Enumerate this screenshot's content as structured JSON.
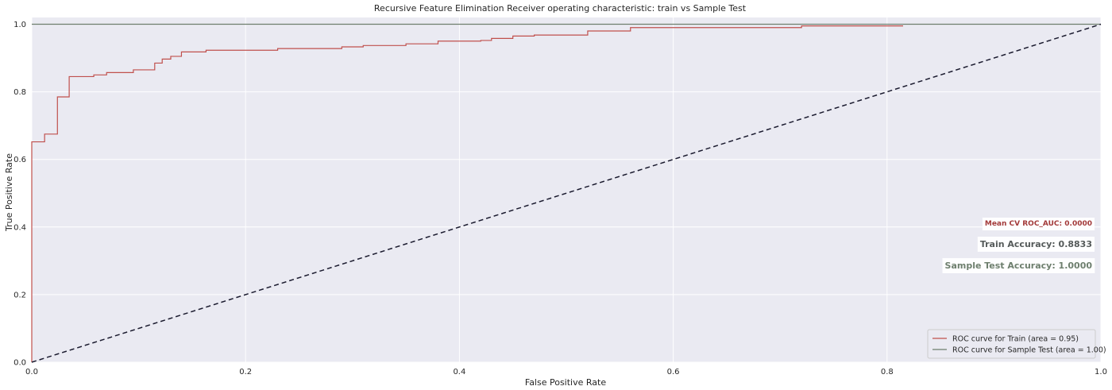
{
  "chart_data": {
    "type": "line",
    "title": "Recursive Feature Elimination Receiver operating characteristic: train vs Sample Test",
    "xlabel": "False Positive Rate",
    "ylabel": "True Positive Rate",
    "xlim": [
      0.0,
      1.0
    ],
    "ylim": [
      0.0,
      1.02
    ],
    "x_ticks": [
      0.0,
      0.2,
      0.4,
      0.6,
      0.8,
      1.0
    ],
    "y_ticks": [
      0.0,
      0.2,
      0.4,
      0.6,
      0.8,
      1.0
    ],
    "x_tick_labels": [
      "0.0",
      "0.2",
      "0.4",
      "0.6",
      "0.8",
      "1.0"
    ],
    "y_tick_labels": [
      "0.0",
      "0.2",
      "0.4",
      "0.6",
      "0.8",
      "1.0"
    ],
    "grid": true,
    "legend_position": "bottom-right",
    "series": [
      {
        "name": "ROC curve for Train (area = 0.95)",
        "color": "#c0504d",
        "step": true,
        "x": [
          0.0,
          0.0,
          0.012,
          0.012,
          0.024,
          0.024,
          0.035,
          0.035,
          0.058,
          0.058,
          0.07,
          0.07,
          0.095,
          0.095,
          0.115,
          0.115,
          0.122,
          0.122,
          0.13,
          0.13,
          0.14,
          0.14,
          0.163,
          0.163,
          0.23,
          0.23,
          0.29,
          0.29,
          0.31,
          0.31,
          0.35,
          0.35,
          0.38,
          0.38,
          0.42,
          0.42,
          0.43,
          0.43,
          0.45,
          0.45,
          0.47,
          0.47,
          0.52,
          0.52,
          0.56,
          0.56,
          0.72,
          0.72,
          0.815
        ],
        "y": [
          0.0,
          0.652,
          0.652,
          0.675,
          0.675,
          0.785,
          0.785,
          0.845,
          0.845,
          0.85,
          0.85,
          0.857,
          0.857,
          0.865,
          0.865,
          0.885,
          0.885,
          0.897,
          0.897,
          0.905,
          0.905,
          0.918,
          0.918,
          0.923,
          0.923,
          0.928,
          0.928,
          0.933,
          0.933,
          0.937,
          0.937,
          0.942,
          0.942,
          0.95,
          0.95,
          0.952,
          0.952,
          0.958,
          0.958,
          0.965,
          0.965,
          0.968,
          0.968,
          0.98,
          0.98,
          0.99,
          0.99,
          0.995,
          0.995
        ]
      },
      {
        "name": "ROC curve for Sample Test (area = 1.00)",
        "color": "#6e7f6e",
        "step": false,
        "x": [
          0.0,
          1.0
        ],
        "y": [
          1.0,
          1.0
        ]
      },
      {
        "name": "",
        "color": "#1a1a2e",
        "dashed": true,
        "x": [
          0.0,
          1.0
        ],
        "y": [
          0.0,
          1.0
        ]
      }
    ],
    "annotations": [
      {
        "text": "Mean CV ROC_AUC: 0.0000",
        "color": "#a33a3a",
        "size": 9
      },
      {
        "text": "Train Accuracy: 0.8833",
        "color": "#555a5a",
        "size": 11
      },
      {
        "text": "Sample Test Accuracy: 1.0000",
        "color": "#6e7f6e",
        "size": 11
      }
    ],
    "plot_background": "#eaeaf2"
  }
}
